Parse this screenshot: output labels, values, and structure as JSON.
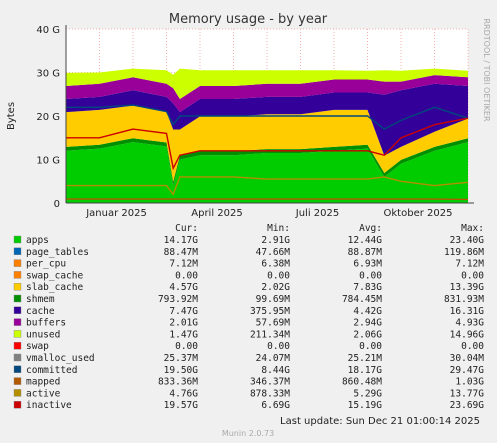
{
  "chart_data": {
    "type": "area",
    "title": "Memory usage - by year",
    "ylabel": "Bytes",
    "ylim": [
      0,
      40
    ],
    "yticks": [
      "0",
      "10 G",
      "20 G",
      "30 G",
      "40 G"
    ],
    "xticks": [
      "Januar 2025",
      "April 2025",
      "Juli 2025",
      "Oktober 2025"
    ],
    "grid": true,
    "watermark": "RRDTOOL / TOBI OETIKER",
    "footer": "Munin 2.0.73",
    "last_update": "Last update: Sun Dec 21 01:00:14 2025",
    "legend_headers": [
      "Cur:",
      "Min:",
      "Avg:",
      "Max:"
    ],
    "legend": [
      {
        "name": "apps",
        "color": "#00cc00",
        "cur": "14.17G",
        "min": "2.91G",
        "avg": "12.44G",
        "max": "23.40G"
      },
      {
        "name": "page_tables",
        "color": "#0066b3",
        "cur": "88.47M",
        "min": "47.66M",
        "avg": "88.87M",
        "max": "119.86M"
      },
      {
        "name": "per_cpu",
        "color": "#ff8000",
        "cur": "7.12M",
        "min": "6.38M",
        "avg": "6.93M",
        "max": "7.12M"
      },
      {
        "name": "swap_cache",
        "color": "#ff8000",
        "cur": "0.00",
        "min": "0.00",
        "avg": "0.00",
        "max": "0.00"
      },
      {
        "name": "slab_cache",
        "color": "#ffcc00",
        "cur": "4.57G",
        "min": "2.02G",
        "avg": "7.83G",
        "max": "13.39G"
      },
      {
        "name": "shmem",
        "color": "#008f00",
        "cur": "793.92M",
        "min": "99.69M",
        "avg": "784.45M",
        "max": "831.93M"
      },
      {
        "name": "cache",
        "color": "#330099",
        "cur": "7.47G",
        "min": "375.95M",
        "avg": "4.42G",
        "max": "16.31G"
      },
      {
        "name": "buffers",
        "color": "#990099",
        "cur": "2.01G",
        "min": "57.69M",
        "avg": "2.94G",
        "max": "4.93G"
      },
      {
        "name": "unused",
        "color": "#ccff00",
        "cur": "1.47G",
        "min": "211.34M",
        "avg": "2.06G",
        "max": "14.96G"
      },
      {
        "name": "swap",
        "color": "#ff0000",
        "cur": "0.00",
        "min": "0.00",
        "avg": "0.00",
        "max": "0.00"
      },
      {
        "name": "vmalloc_used",
        "color": "#808080",
        "cur": "25.37M",
        "min": "24.07M",
        "avg": "25.21M",
        "max": "30.04M"
      },
      {
        "name": "committed",
        "color": "#00487d",
        "cur": "19.50G",
        "min": "8.44G",
        "avg": "18.17G",
        "max": "29.47G"
      },
      {
        "name": "mapped",
        "color": "#b35a00",
        "cur": "833.36M",
        "min": "346.37M",
        "avg": "860.48M",
        "max": "1.03G"
      },
      {
        "name": "active",
        "color": "#b38f00",
        "cur": "4.76G",
        "min": "878.33M",
        "avg": "5.29G",
        "max": "13.77G"
      },
      {
        "name": "inactive",
        "color": "#cc0000",
        "cur": "19.57G",
        "min": "6.69G",
        "avg": "15.19G",
        "max": "23.69G"
      }
    ],
    "series_approx": {
      "x_months": [
        0,
        1,
        2,
        3,
        3.2,
        3.4,
        4,
        5,
        6,
        7,
        8,
        9,
        9.5,
        10,
        11,
        12
      ],
      "apps": [
        12,
        12.5,
        14,
        13,
        4,
        10,
        11,
        11,
        11.5,
        11.5,
        12,
        12.5,
        6,
        9,
        12,
        14
      ],
      "page_tables_shmem": [
        0.9,
        0.9,
        0.9,
        0.9,
        0.9,
        0.9,
        0.9,
        0.9,
        0.9,
        0.9,
        0.9,
        0.9,
        0.9,
        0.9,
        0.9,
        0.9
      ],
      "slab_cache": [
        8,
        8,
        7.5,
        7,
        12,
        6,
        8,
        8,
        8,
        8,
        8.5,
        8,
        4,
        3,
        3.5,
        4.5
      ],
      "cache": [
        3,
        3,
        3.5,
        3.5,
        6,
        4,
        4,
        4,
        4,
        4,
        4,
        4,
        14,
        13,
        11,
        7.5
      ],
      "buffers": [
        3,
        3,
        3,
        3,
        3.5,
        3,
        3,
        3,
        3,
        3,
        3,
        3,
        3,
        2,
        2,
        2
      ],
      "unused": [
        3,
        2.6,
        2,
        3.1,
        3.1,
        7,
        3.6,
        3.6,
        3.1,
        3.1,
        2.1,
        2,
        2.6,
        2.5,
        1.5,
        1.5
      ],
      "committed": [
        22,
        22,
        22.5,
        21,
        18,
        20,
        20,
        20,
        20,
        20,
        20,
        20,
        17,
        19,
        22,
        19.5
      ],
      "inactive": [
        15,
        15,
        17,
        16,
        8,
        11,
        12,
        12,
        12,
        12,
        12,
        12,
        11,
        15,
        18,
        19.5
      ],
      "active": [
        4,
        4,
        4,
        4,
        2,
        6,
        6,
        6,
        5.5,
        5.5,
        5.5,
        5.5,
        6,
        5,
        4,
        4.76
      ],
      "mapped": [
        0.9,
        0.9,
        0.9,
        0.9,
        0.9,
        0.9,
        0.9,
        0.9,
        0.9,
        0.9,
        0.9,
        0.9,
        0.9,
        0.9,
        0.9,
        0.83
      ]
    }
  }
}
